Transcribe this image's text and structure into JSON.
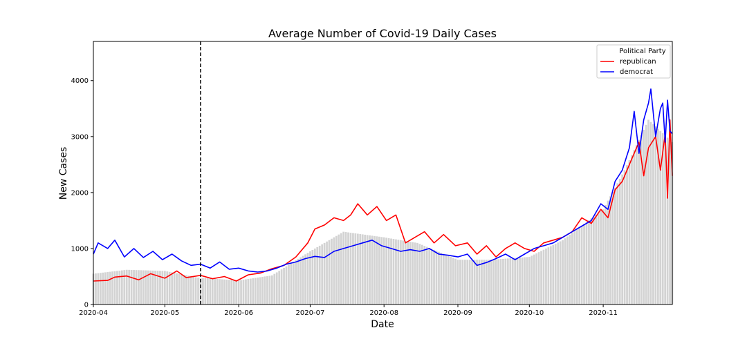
{
  "chart_data": {
    "type": "line",
    "title": "Average Number of Covid-19 Daily Cases",
    "xlabel": "Date",
    "ylabel": "New Cases",
    "x_range": [
      "2020-04-01",
      "2020-11-30"
    ],
    "ylim": [
      0,
      4700
    ],
    "x_ticks": [
      "2020-04",
      "2020-05",
      "2020-06",
      "2020-07",
      "2020-08",
      "2020-09",
      "2020-10",
      "2020-11"
    ],
    "y_ticks": [
      0,
      1000,
      2000,
      3000,
      4000
    ],
    "vline_date": "2020-05-16",
    "legend": {
      "title": "Political Party",
      "placement": "top-right"
    },
    "grid": false,
    "series": [
      {
        "name": "republican",
        "color": "#ff0000",
        "points": [
          [
            "2020-04-01",
            420
          ],
          [
            "2020-04-07",
            430
          ],
          [
            "2020-04-10",
            490
          ],
          [
            "2020-04-15",
            510
          ],
          [
            "2020-04-20",
            440
          ],
          [
            "2020-04-25",
            550
          ],
          [
            "2020-05-01",
            470
          ],
          [
            "2020-05-06",
            600
          ],
          [
            "2020-05-10",
            480
          ],
          [
            "2020-05-16",
            520
          ],
          [
            "2020-05-21",
            460
          ],
          [
            "2020-05-26",
            500
          ],
          [
            "2020-05-31",
            420
          ],
          [
            "2020-06-05",
            530
          ],
          [
            "2020-06-10",
            560
          ],
          [
            "2020-06-15",
            640
          ],
          [
            "2020-06-20",
            700
          ],
          [
            "2020-06-25",
            850
          ],
          [
            "2020-06-30",
            1100
          ],
          [
            "2020-07-03",
            1350
          ],
          [
            "2020-07-07",
            1420
          ],
          [
            "2020-07-11",
            1550
          ],
          [
            "2020-07-15",
            1500
          ],
          [
            "2020-07-18",
            1600
          ],
          [
            "2020-07-21",
            1800
          ],
          [
            "2020-07-25",
            1600
          ],
          [
            "2020-07-29",
            1750
          ],
          [
            "2020-08-02",
            1500
          ],
          [
            "2020-08-06",
            1600
          ],
          [
            "2020-08-10",
            1100
          ],
          [
            "2020-08-14",
            1200
          ],
          [
            "2020-08-18",
            1300
          ],
          [
            "2020-08-22",
            1100
          ],
          [
            "2020-08-26",
            1250
          ],
          [
            "2020-08-31",
            1050
          ],
          [
            "2020-09-05",
            1100
          ],
          [
            "2020-09-09",
            900
          ],
          [
            "2020-09-13",
            1050
          ],
          [
            "2020-09-17",
            850
          ],
          [
            "2020-09-21",
            1000
          ],
          [
            "2020-09-25",
            1100
          ],
          [
            "2020-09-29",
            1000
          ],
          [
            "2020-10-03",
            950
          ],
          [
            "2020-10-07",
            1100
          ],
          [
            "2020-10-11",
            1150
          ],
          [
            "2020-10-15",
            1200
          ],
          [
            "2020-10-19",
            1300
          ],
          [
            "2020-10-23",
            1550
          ],
          [
            "2020-10-27",
            1450
          ],
          [
            "2020-10-31",
            1700
          ],
          [
            "2020-11-03",
            1550
          ],
          [
            "2020-11-06",
            2050
          ],
          [
            "2020-11-09",
            2200
          ],
          [
            "2020-11-13",
            2600
          ],
          [
            "2020-11-16",
            2900
          ],
          [
            "2020-11-18",
            2300
          ],
          [
            "2020-11-20",
            2800
          ],
          [
            "2020-11-23",
            3000
          ],
          [
            "2020-11-25",
            2400
          ],
          [
            "2020-11-27",
            3050
          ],
          [
            "2020-11-28",
            1900
          ],
          [
            "2020-11-29",
            3300
          ],
          [
            "2020-11-30",
            2300
          ]
        ]
      },
      {
        "name": "democrat",
        "color": "#0000ff",
        "points": [
          [
            "2020-04-01",
            900
          ],
          [
            "2020-04-03",
            1100
          ],
          [
            "2020-04-07",
            1000
          ],
          [
            "2020-04-10",
            1150
          ],
          [
            "2020-04-14",
            850
          ],
          [
            "2020-04-18",
            1000
          ],
          [
            "2020-04-22",
            840
          ],
          [
            "2020-04-26",
            950
          ],
          [
            "2020-04-30",
            800
          ],
          [
            "2020-05-04",
            900
          ],
          [
            "2020-05-08",
            780
          ],
          [
            "2020-05-12",
            700
          ],
          [
            "2020-05-16",
            720
          ],
          [
            "2020-05-20",
            650
          ],
          [
            "2020-05-24",
            760
          ],
          [
            "2020-05-28",
            630
          ],
          [
            "2020-06-01",
            650
          ],
          [
            "2020-06-05",
            600
          ],
          [
            "2020-06-09",
            580
          ],
          [
            "2020-06-13",
            600
          ],
          [
            "2020-06-17",
            650
          ],
          [
            "2020-06-21",
            720
          ],
          [
            "2020-06-25",
            760
          ],
          [
            "2020-06-29",
            820
          ],
          [
            "2020-07-03",
            860
          ],
          [
            "2020-07-07",
            840
          ],
          [
            "2020-07-11",
            950
          ],
          [
            "2020-07-15",
            1000
          ],
          [
            "2020-07-19",
            1050
          ],
          [
            "2020-07-23",
            1100
          ],
          [
            "2020-07-27",
            1150
          ],
          [
            "2020-07-31",
            1050
          ],
          [
            "2020-08-04",
            1000
          ],
          [
            "2020-08-08",
            950
          ],
          [
            "2020-08-12",
            980
          ],
          [
            "2020-08-16",
            950
          ],
          [
            "2020-08-20",
            1000
          ],
          [
            "2020-08-24",
            900
          ],
          [
            "2020-08-28",
            880
          ],
          [
            "2020-09-01",
            850
          ],
          [
            "2020-09-05",
            900
          ],
          [
            "2020-09-09",
            700
          ],
          [
            "2020-09-13",
            750
          ],
          [
            "2020-09-17",
            820
          ],
          [
            "2020-09-21",
            900
          ],
          [
            "2020-09-25",
            800
          ],
          [
            "2020-09-29",
            900
          ],
          [
            "2020-10-03",
            1000
          ],
          [
            "2020-10-07",
            1050
          ],
          [
            "2020-10-11",
            1100
          ],
          [
            "2020-10-15",
            1200
          ],
          [
            "2020-10-19",
            1300
          ],
          [
            "2020-10-23",
            1400
          ],
          [
            "2020-10-27",
            1500
          ],
          [
            "2020-10-31",
            1800
          ],
          [
            "2020-11-03",
            1700
          ],
          [
            "2020-11-06",
            2200
          ],
          [
            "2020-11-09",
            2400
          ],
          [
            "2020-11-12",
            2800
          ],
          [
            "2020-11-14",
            3450
          ],
          [
            "2020-11-16",
            2700
          ],
          [
            "2020-11-18",
            3300
          ],
          [
            "2020-11-20",
            3600
          ],
          [
            "2020-11-21",
            3850
          ],
          [
            "2020-11-23",
            3000
          ],
          [
            "2020-11-25",
            3500
          ],
          [
            "2020-11-26",
            3600
          ],
          [
            "2020-11-27",
            2900
          ],
          [
            "2020-11-28",
            3650
          ],
          [
            "2020-11-29",
            3100
          ],
          [
            "2020-11-30",
            3050
          ]
        ]
      },
      {
        "name": "",
        "color": "#d3d3d3",
        "type": "bar",
        "points": [
          [
            "2020-04-01",
            550
          ],
          [
            "2020-04-15",
            620
          ],
          [
            "2020-05-01",
            600
          ],
          [
            "2020-05-15",
            480
          ],
          [
            "2020-06-01",
            430
          ],
          [
            "2020-06-15",
            520
          ],
          [
            "2020-07-01",
            950
          ],
          [
            "2020-07-15",
            1300
          ],
          [
            "2020-08-01",
            1200
          ],
          [
            "2020-08-15",
            1100
          ],
          [
            "2020-09-01",
            800
          ],
          [
            "2020-09-15",
            800
          ],
          [
            "2020-10-01",
            850
          ],
          [
            "2020-10-15",
            1150
          ],
          [
            "2020-11-01",
            1700
          ],
          [
            "2020-11-10",
            2400
          ],
          [
            "2020-11-20",
            3300
          ],
          [
            "2020-11-30",
            2900
          ]
        ]
      }
    ]
  }
}
